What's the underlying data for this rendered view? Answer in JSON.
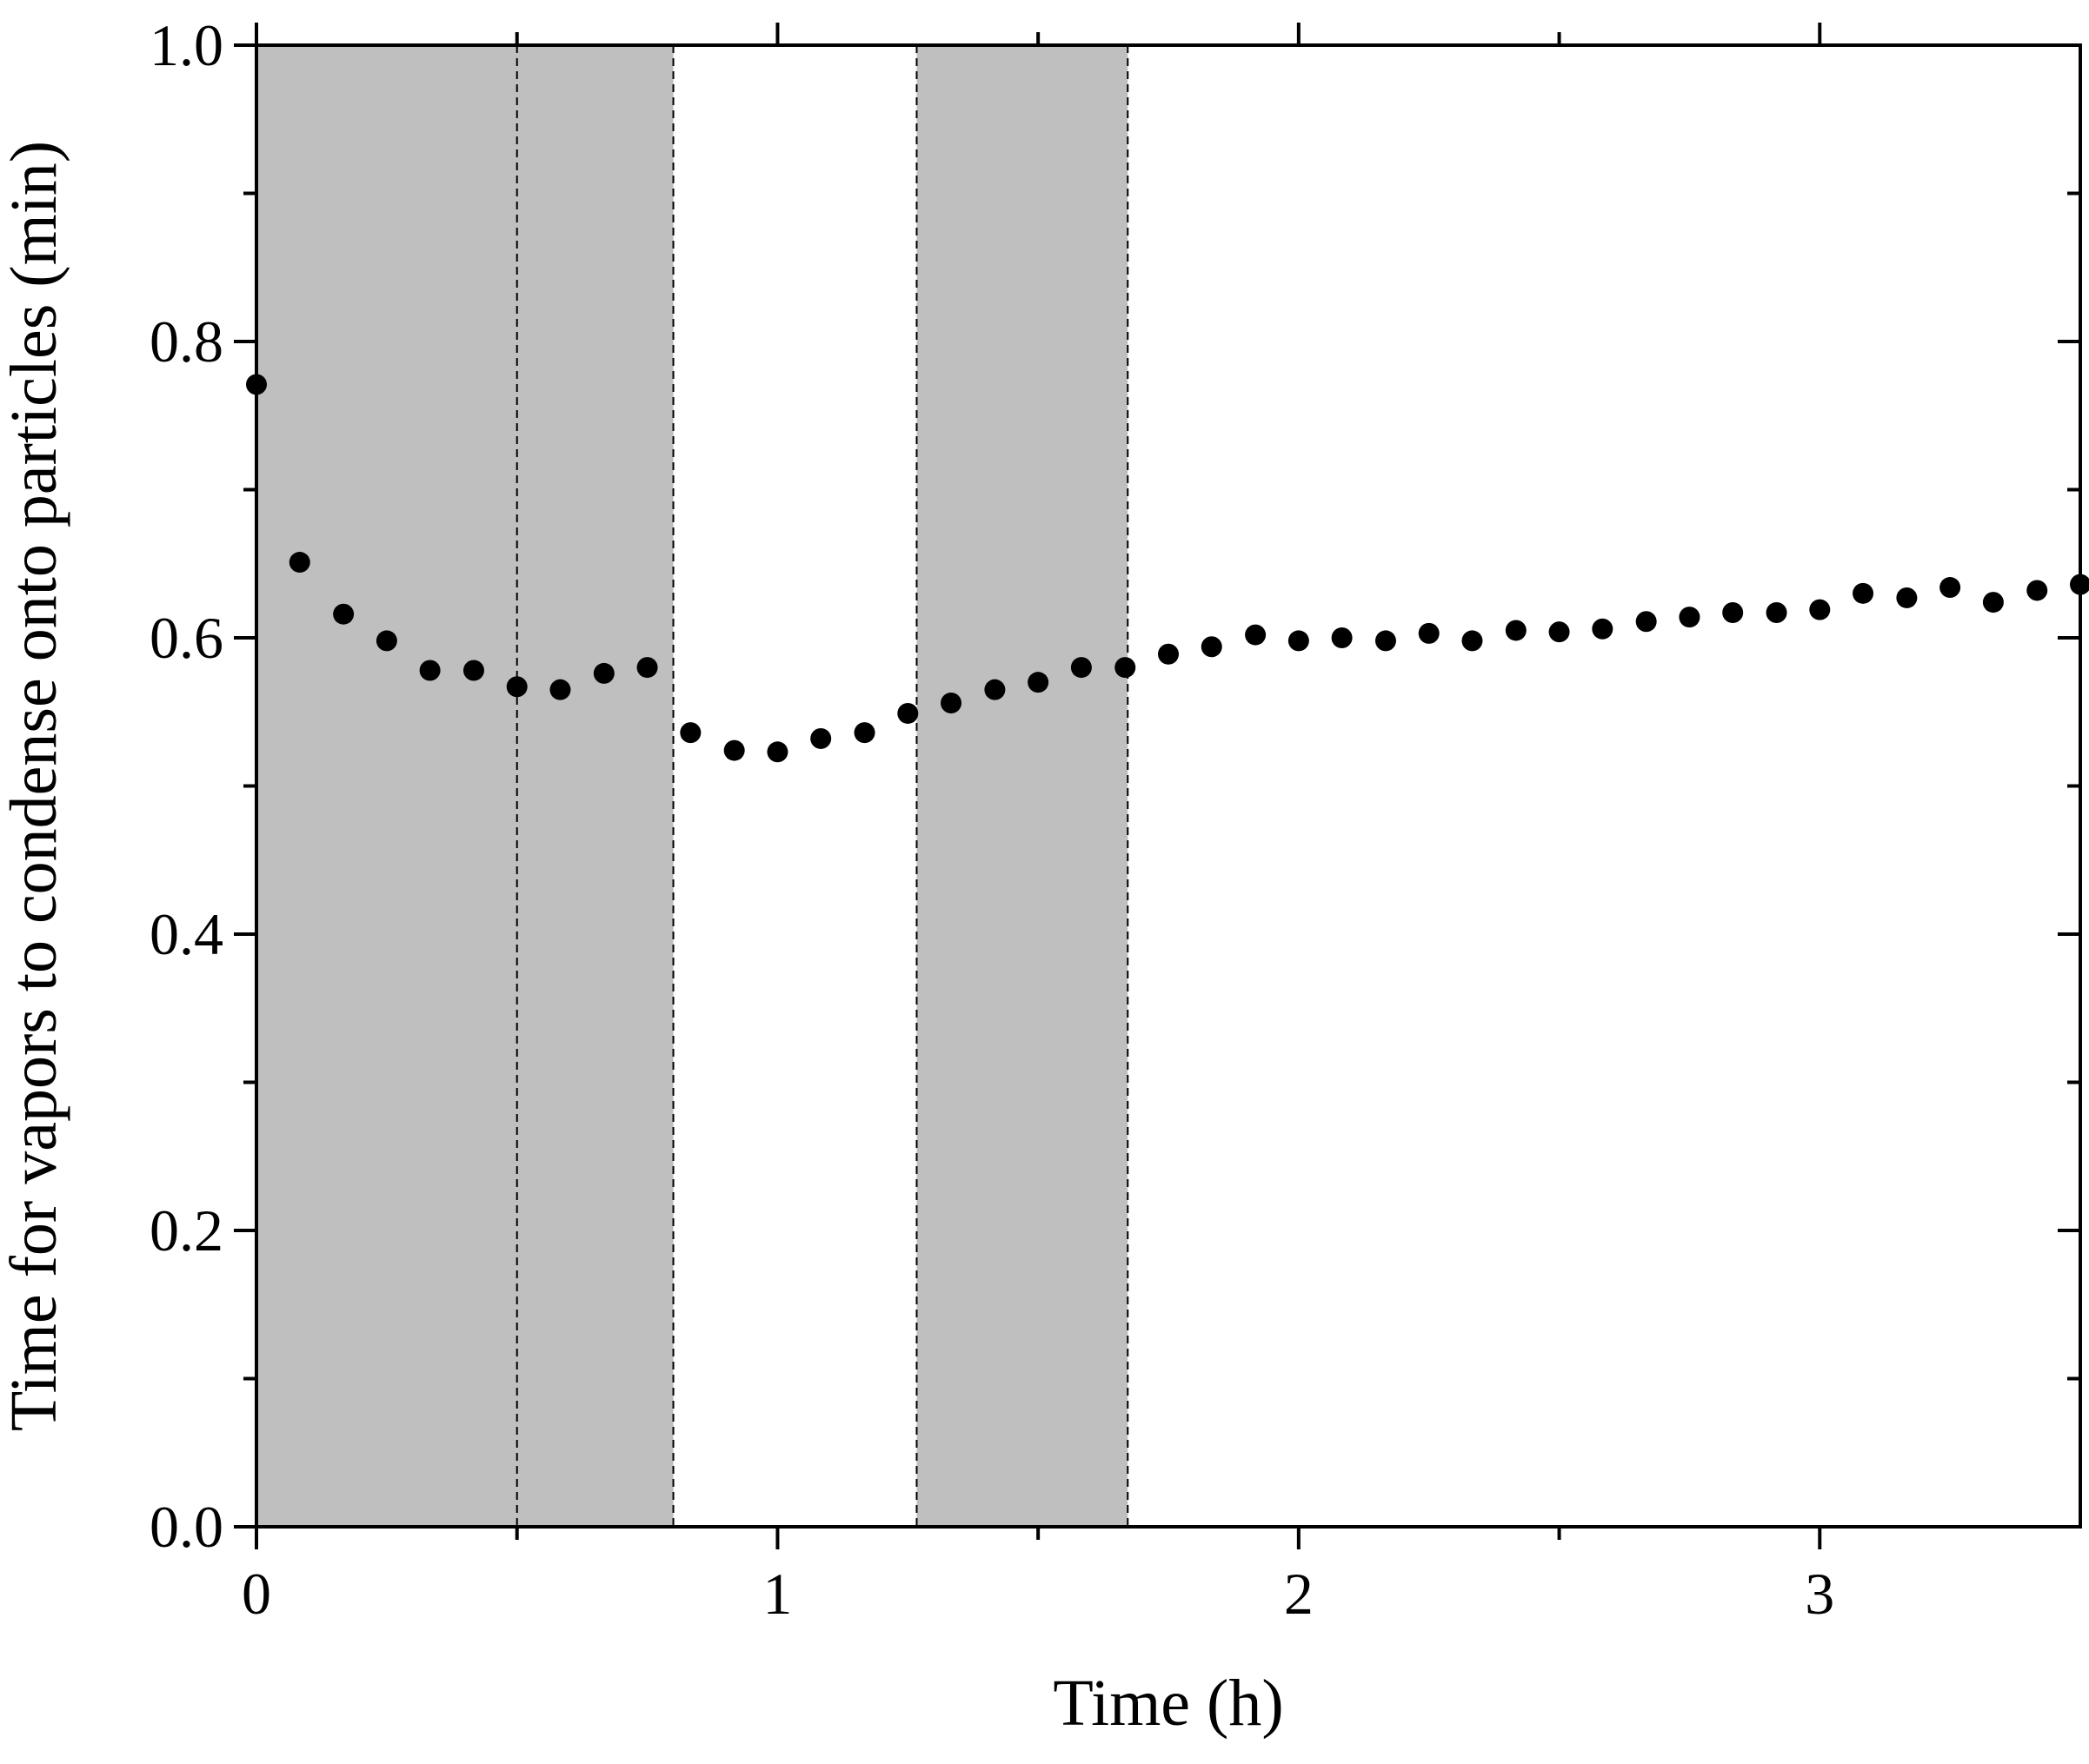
{
  "chart_data": {
    "type": "scatter",
    "title": "",
    "xlabel": "Time (h)",
    "ylabel": "Time for vapors to condense onto particles (min)",
    "xlim": [
      0,
      3.5
    ],
    "ylim": [
      0.0,
      1.0
    ],
    "x_major_ticks": [
      0,
      1,
      2,
      3
    ],
    "x_tick_labels": [
      "0",
      "1",
      "2",
      "3"
    ],
    "x_minor_ticks": [
      0.5,
      1.5,
      2.5
    ],
    "y_major_ticks": [
      0.0,
      0.2,
      0.4,
      0.6,
      0.8,
      1.0
    ],
    "y_tick_labels": [
      "0.0",
      "0.2",
      "0.4",
      "0.6",
      "0.8",
      "1.0"
    ],
    "y_minor_ticks": [
      0.1,
      0.3,
      0.5,
      0.7,
      0.9
    ],
    "grid": false,
    "marker_color": "#000000",
    "shaded_regions": [
      {
        "x_start": 0.0,
        "x_end": 0.8,
        "color": "#bfbfbf"
      },
      {
        "x_start": 1.267,
        "x_end": 1.672,
        "color": "#bfbfbf"
      }
    ],
    "dashed_vlines": [
      0.0,
      0.5,
      0.8,
      1.267,
      1.672
    ],
    "series": [
      {
        "x": [
          0.0,
          0.083,
          0.167,
          0.25,
          0.333,
          0.417,
          0.5,
          0.583,
          0.667,
          0.75,
          0.833,
          0.917,
          1.0,
          1.083,
          1.167,
          1.25,
          1.333,
          1.417,
          1.5,
          1.583,
          1.667,
          1.75,
          1.833,
          1.917,
          2.0,
          2.083,
          2.167,
          2.25,
          2.333,
          2.417,
          2.5,
          2.583,
          2.667,
          2.75,
          2.833,
          2.917,
          3.0,
          3.083,
          3.167,
          3.25,
          3.333,
          3.417,
          3.5
        ],
        "y": [
          0.771,
          0.651,
          0.616,
          0.598,
          0.578,
          0.578,
          0.567,
          0.565,
          0.576,
          0.58,
          0.536,
          0.524,
          0.523,
          0.532,
          0.536,
          0.549,
          0.556,
          0.565,
          0.57,
          0.58,
          0.58,
          0.589,
          0.594,
          0.602,
          0.598,
          0.6,
          0.598,
          0.603,
          0.598,
          0.605,
          0.604,
          0.606,
          0.611,
          0.614,
          0.617,
          0.617,
          0.619,
          0.63,
          0.627,
          0.634,
          0.624,
          0.632,
          0.636
        ]
      }
    ]
  }
}
